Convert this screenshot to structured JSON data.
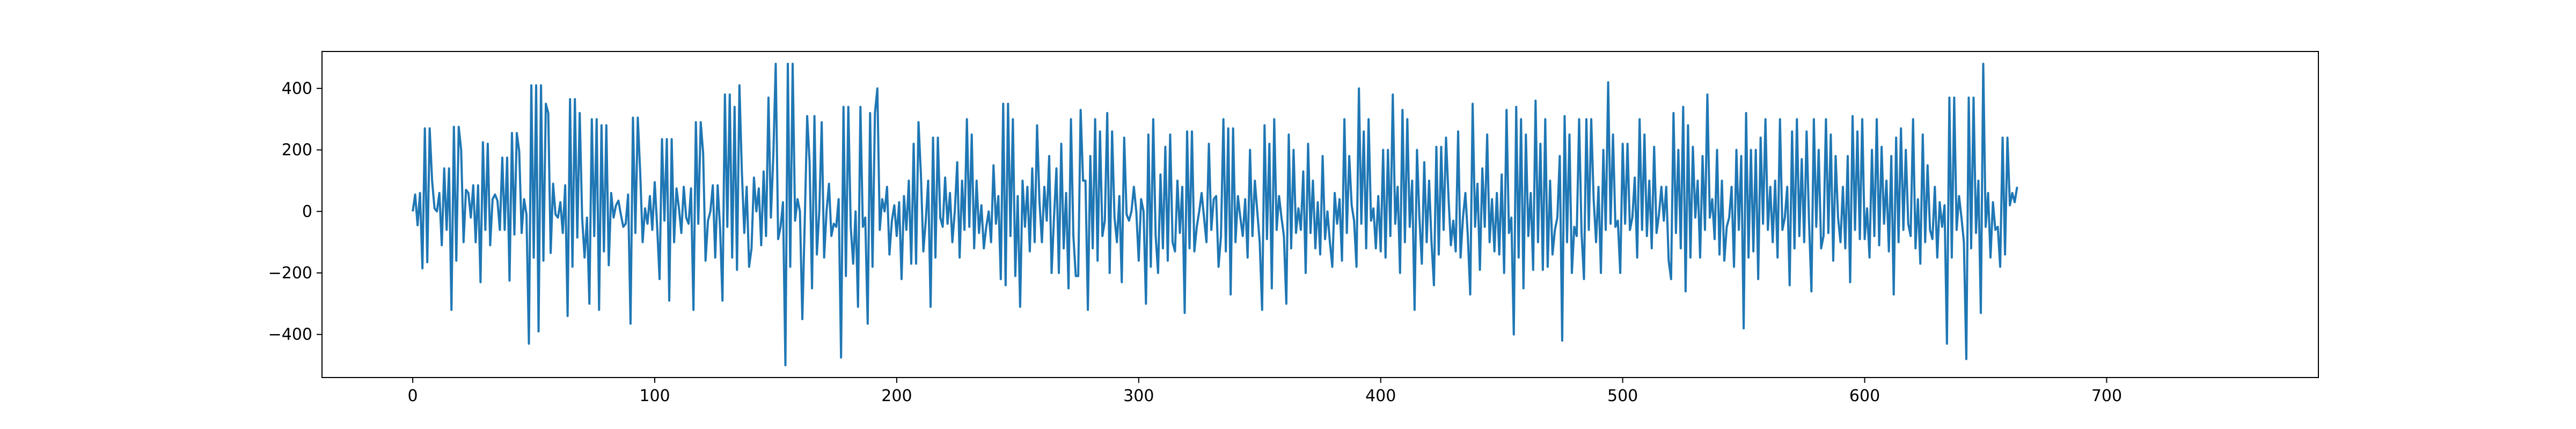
{
  "chart_data": {
    "type": "line",
    "title": "",
    "xlabel": "",
    "ylabel": "",
    "xlim": [
      -37.5,
      787.5
    ],
    "ylim": [
      -540,
      520
    ],
    "x_ticks": [
      0,
      100,
      200,
      300,
      400,
      500,
      600,
      700
    ],
    "y_ticks": [
      -400,
      -200,
      0,
      200,
      400
    ],
    "x_tick_labels": [
      "0",
      "100",
      "200",
      "300",
      "400",
      "500",
      "600",
      "700"
    ],
    "y_tick_labels": [
      "−400",
      "−200",
      "0",
      "200",
      "400"
    ],
    "grid": false,
    "legend": "none",
    "series": [
      {
        "color": "#1f77b4",
        "x_start": 0,
        "x_step": 1,
        "values": [
          0,
          55,
          -45,
          60,
          -185,
          270,
          -165,
          270,
          100,
          10,
          0,
          60,
          -110,
          140,
          -60,
          140,
          -320,
          275,
          -160,
          275,
          200,
          -100,
          70,
          60,
          -20,
          85,
          -100,
          85,
          -230,
          225,
          -60,
          220,
          -110,
          40,
          55,
          35,
          -60,
          175,
          -60,
          175,
          -225,
          255,
          -75,
          255,
          195,
          -70,
          40,
          -10,
          -430,
          410,
          -150,
          410,
          -390,
          410,
          -160,
          350,
          320,
          -135,
          90,
          -10,
          -20,
          30,
          -70,
          85,
          -340,
          365,
          -180,
          365,
          -85,
          320,
          -20,
          -150,
          -20,
          -300,
          300,
          -80,
          300,
          -320,
          280,
          -130,
          280,
          -175,
          60,
          -20,
          20,
          35,
          -10,
          -50,
          -40,
          55,
          -365,
          305,
          -70,
          305,
          125,
          -100,
          10,
          -40,
          50,
          -60,
          95,
          -50,
          -220,
          235,
          -30,
          235,
          -290,
          235,
          -100,
          75,
          10,
          -70,
          80,
          -20,
          -40,
          75,
          -320,
          290,
          -40,
          290,
          190,
          -160,
          -30,
          0,
          85,
          -150,
          85,
          -55,
          -290,
          380,
          -50,
          380,
          -150,
          340,
          -190,
          410,
          130,
          -70,
          80,
          -180,
          -120,
          110,
          0,
          75,
          -110,
          130,
          -80,
          370,
          -20,
          180,
          480,
          -90,
          -50,
          30,
          -500,
          480,
          -180,
          480,
          -30,
          40,
          0,
          -350,
          -30,
          310,
          160,
          -250,
          310,
          -140,
          0,
          290,
          -150,
          0,
          90,
          -80,
          -40,
          -50,
          40,
          -475,
          340,
          -210,
          340,
          -50,
          -170,
          0,
          -310,
          340,
          -50,
          -20,
          -365,
          320,
          -180,
          320,
          400,
          -60,
          40,
          0,
          80,
          -140,
          -30,
          20,
          -80,
          30,
          -220,
          50,
          -60,
          100,
          -170,
          220,
          -170,
          290,
          120,
          -130,
          -30,
          100,
          -310,
          240,
          -150,
          240,
          -20,
          -50,
          110,
          -40,
          60,
          -100,
          0,
          160,
          -150,
          100,
          -60,
          300,
          -50,
          250,
          -120,
          100,
          -70,
          20,
          -120,
          -50,
          0,
          -100,
          150,
          -40,
          50,
          -220,
          350,
          -240,
          350,
          -80,
          300,
          -210,
          50,
          -310,
          100,
          -50,
          80,
          -130,
          140,
          -100,
          280,
          30,
          -100,
          80,
          -30,
          180,
          -200,
          -20,
          140,
          -200,
          220,
          -120,
          60,
          -250,
          300,
          -80,
          -210,
          -210,
          330,
          100,
          100,
          -320,
          180,
          -120,
          300,
          -160,
          260,
          -80,
          -30,
          320,
          -200,
          260,
          -20,
          -100,
          50,
          -230,
          240,
          -10,
          -30,
          0,
          80,
          0,
          -160,
          40,
          0,
          -300,
          250,
          -180,
          300,
          -80,
          -200,
          120,
          -120,
          210,
          -160,
          250,
          -100,
          -130,
          100,
          -70,
          80,
          -330,
          260,
          -120,
          260,
          -130,
          -50,
          0,
          60,
          -20,
          -100,
          220,
          -60,
          40,
          50,
          -180,
          -80,
          300,
          -130,
          270,
          -270,
          270,
          -100,
          50,
          -20,
          -80,
          40,
          -150,
          200,
          -80,
          100,
          0,
          -100,
          -320,
          280,
          -90,
          220,
          -250,
          300,
          -60,
          50,
          -20,
          -80,
          -300,
          250,
          -120,
          200,
          -70,
          10,
          -60,
          130,
          -200,
          220,
          -70,
          100,
          -120,
          30,
          -140,
          180,
          -90,
          0,
          -100,
          -180,
          60,
          -40,
          40,
          -160,
          300,
          -70,
          180,
          20,
          -30,
          -180,
          400,
          -40,
          260,
          -120,
          300,
          -30,
          10,
          -120,
          50,
          -130,
          200,
          -150,
          200,
          -80,
          380,
          -40,
          80,
          -200,
          330,
          -100,
          300,
          -50,
          100,
          -320,
          200,
          -20,
          -170,
          160,
          -100,
          100,
          -100,
          -240,
          210,
          -140,
          210,
          -60,
          240,
          50,
          -110,
          -30,
          -130,
          260,
          -150,
          -20,
          60,
          -80,
          -270,
          350,
          -50,
          90,
          -190,
          140,
          -50,
          250,
          -100,
          40,
          -130,
          60,
          -140,
          120,
          -200,
          330,
          -70,
          -20,
          -400,
          340,
          -150,
          300,
          -250,
          250,
          -80,
          60,
          -190,
          360,
          -100,
          220,
          -190,
          300,
          -180,
          100,
          -140,
          -60,
          -20,
          180,
          -420,
          310,
          -100,
          250,
          -200,
          -50,
          -80,
          300,
          -70,
          -220,
          300,
          -60,
          300,
          40,
          -100,
          80,
          -200,
          200,
          -60,
          420,
          -40,
          250,
          -50,
          -30,
          -200,
          220,
          -40,
          220,
          -60,
          -20,
          110,
          -150,
          300,
          -60,
          250,
          -80,
          100,
          -120,
          210,
          -70,
          -10,
          80,
          -30,
          80,
          -160,
          -220,
          320,
          -70,
          200,
          -120,
          340,
          -260,
          280,
          -150,
          210,
          -20,
          100,
          -150,
          180,
          -60,
          380,
          -20,
          40,
          -90,
          200,
          -140,
          100,
          -160,
          -50,
          -20,
          80,
          -180,
          200,
          -60,
          180,
          -380,
          320,
          -150,
          200,
          -130,
          200,
          -220,
          240,
          -40,
          300,
          -60,
          80,
          -100,
          100,
          -150,
          300,
          -60,
          -20,
          80,
          -240,
          260,
          -120,
          300,
          -80,
          170,
          -100,
          260,
          -30,
          -260,
          300,
          -50,
          200,
          -120,
          -80,
          300,
          -70,
          250,
          -160,
          180,
          -20,
          -100,
          80,
          -120,
          180,
          -230,
          310,
          -60,
          260,
          -90,
          300,
          -90,
          10,
          -150,
          200,
          -80,
          300,
          -110,
          210,
          -40,
          100,
          -130,
          180,
          -270,
          240,
          -100,
          270,
          -60,
          200,
          -40,
          -80,
          300,
          -120,
          40,
          -170,
          250,
          -100,
          150,
          -60,
          -90,
          80,
          -150,
          30,
          -50,
          20,
          -430,
          370,
          -150,
          370,
          -60,
          50,
          -20,
          -100,
          -480,
          370,
          -120,
          370,
          -70,
          100,
          -330,
          480,
          -50,
          60,
          -150,
          30,
          -60,
          -50,
          -180,
          240,
          -140,
          240,
          20,
          60,
          30,
          80
        ]
      }
    ]
  }
}
